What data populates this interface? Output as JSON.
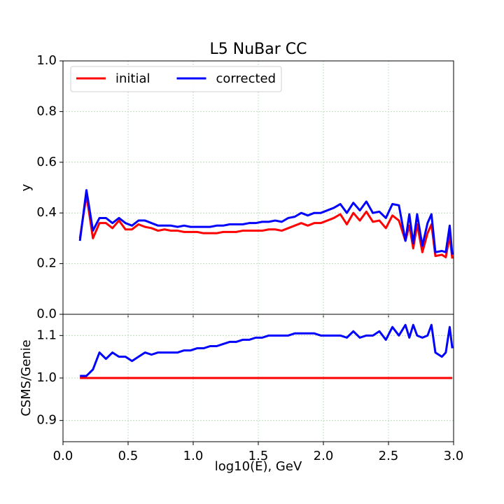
{
  "chart_data": [
    {
      "type": "line",
      "title": "L5 NuBar CC",
      "ylabel": "y",
      "x": [
        0.13,
        0.18,
        0.23,
        0.28,
        0.33,
        0.38,
        0.43,
        0.48,
        0.53,
        0.58,
        0.63,
        0.68,
        0.73,
        0.78,
        0.83,
        0.88,
        0.93,
        0.98,
        1.03,
        1.08,
        1.13,
        1.18,
        1.23,
        1.28,
        1.33,
        1.38,
        1.43,
        1.48,
        1.53,
        1.58,
        1.63,
        1.68,
        1.73,
        1.78,
        1.83,
        1.88,
        1.93,
        1.98,
        2.03,
        2.08,
        2.13,
        2.18,
        2.23,
        2.28,
        2.33,
        2.38,
        2.43,
        2.48,
        2.53,
        2.58,
        2.63,
        2.66,
        2.69,
        2.72,
        2.76,
        2.8,
        2.83,
        2.86,
        2.91,
        2.94,
        2.97,
        2.99
      ],
      "series": [
        {
          "name": "initial",
          "color": "#ff0000",
          "values": [
            0.3,
            0.47,
            0.3,
            0.36,
            0.36,
            0.34,
            0.37,
            0.335,
            0.335,
            0.355,
            0.345,
            0.34,
            0.33,
            0.335,
            0.33,
            0.33,
            0.325,
            0.325,
            0.325,
            0.32,
            0.32,
            0.32,
            0.325,
            0.325,
            0.325,
            0.33,
            0.33,
            0.33,
            0.33,
            0.335,
            0.335,
            0.33,
            0.34,
            0.35,
            0.36,
            0.35,
            0.36,
            0.36,
            0.37,
            0.38,
            0.395,
            0.355,
            0.4,
            0.37,
            0.405,
            0.365,
            0.37,
            0.34,
            0.39,
            0.37,
            0.29,
            0.35,
            0.26,
            0.355,
            0.245,
            0.32,
            0.355,
            0.23,
            0.235,
            0.225,
            0.31,
            0.22
          ]
        },
        {
          "name": "corrected",
          "color": "#0000ff",
          "values": [
            0.29,
            0.49,
            0.33,
            0.38,
            0.38,
            0.36,
            0.38,
            0.36,
            0.35,
            0.37,
            0.37,
            0.36,
            0.35,
            0.35,
            0.35,
            0.345,
            0.35,
            0.345,
            0.345,
            0.345,
            0.345,
            0.35,
            0.35,
            0.355,
            0.355,
            0.355,
            0.36,
            0.36,
            0.365,
            0.365,
            0.37,
            0.365,
            0.38,
            0.385,
            0.4,
            0.39,
            0.4,
            0.4,
            0.41,
            0.42,
            0.435,
            0.4,
            0.44,
            0.41,
            0.445,
            0.4,
            0.405,
            0.38,
            0.435,
            0.43,
            0.29,
            0.395,
            0.28,
            0.395,
            0.27,
            0.36,
            0.395,
            0.245,
            0.25,
            0.245,
            0.35,
            0.235
          ]
        }
      ],
      "xlim": [
        0,
        3
      ],
      "xticks": [
        0,
        0.5,
        1,
        1.5,
        2,
        2.5,
        3
      ],
      "ylim": [
        0,
        1
      ],
      "yticks": [
        {
          "value": 0,
          "label": "0.0"
        },
        0.2,
        0.4,
        0.6,
        0.8,
        {
          "value": 1,
          "label": "1.0"
        }
      ],
      "grid": true,
      "legend": "upper left"
    },
    {
      "type": "line",
      "ylabel": "CSMS/Genie",
      "xlabel": "log10(E), GeV",
      "x": [
        0.13,
        0.18,
        0.23,
        0.28,
        0.33,
        0.38,
        0.43,
        0.48,
        0.53,
        0.58,
        0.63,
        0.68,
        0.73,
        0.78,
        0.83,
        0.88,
        0.93,
        0.98,
        1.03,
        1.08,
        1.13,
        1.18,
        1.23,
        1.28,
        1.33,
        1.38,
        1.43,
        1.48,
        1.53,
        1.58,
        1.63,
        1.68,
        1.73,
        1.78,
        1.83,
        1.88,
        1.93,
        1.98,
        2.03,
        2.08,
        2.13,
        2.18,
        2.23,
        2.28,
        2.33,
        2.38,
        2.43,
        2.48,
        2.53,
        2.58,
        2.63,
        2.66,
        2.69,
        2.72,
        2.76,
        2.8,
        2.83,
        2.86,
        2.91,
        2.94,
        2.97,
        2.99
      ],
      "series": [
        {
          "color": "#ff0000",
          "values": [
            1,
            1,
            1,
            1,
            1,
            1,
            1,
            1,
            1,
            1,
            1,
            1,
            1,
            1,
            1,
            1,
            1,
            1,
            1,
            1,
            1,
            1,
            1,
            1,
            1,
            1,
            1,
            1,
            1,
            1,
            1,
            1,
            1,
            1,
            1,
            1,
            1,
            1,
            1,
            1,
            1,
            1,
            1,
            1,
            1,
            1,
            1,
            1,
            1,
            1,
            1,
            1,
            1,
            1,
            1,
            1,
            1,
            1,
            1,
            1,
            1,
            1
          ]
        },
        {
          "color": "#0000ff",
          "values": [
            1.005,
            1.005,
            1.02,
            1.06,
            1.045,
            1.06,
            1.05,
            1.05,
            1.04,
            1.05,
            1.06,
            1.055,
            1.06,
            1.06,
            1.06,
            1.06,
            1.065,
            1.065,
            1.07,
            1.07,
            1.075,
            1.075,
            1.08,
            1.085,
            1.085,
            1.09,
            1.09,
            1.095,
            1.095,
            1.1,
            1.1,
            1.1,
            1.1,
            1.105,
            1.105,
            1.105,
            1.105,
            1.1,
            1.1,
            1.1,
            1.1,
            1.095,
            1.11,
            1.095,
            1.1,
            1.1,
            1.11,
            1.09,
            1.12,
            1.1,
            1.125,
            1.095,
            1.125,
            1.1,
            1.095,
            1.1,
            1.125,
            1.06,
            1.05,
            1.06,
            1.12,
            1.07
          ]
        }
      ],
      "xlim": [
        0,
        3
      ],
      "xticks": [
        {
          "value": 0,
          "label": "0.0"
        },
        0.5,
        {
          "value": 1,
          "label": "1.0"
        },
        1.5,
        {
          "value": 2,
          "label": "2.0"
        },
        2.5,
        {
          "value": 3,
          "label": "3.0"
        }
      ],
      "ylim": [
        0.85,
        1.15
      ],
      "yticks": [
        0.9,
        {
          "value": 1,
          "label": "1.0"
        },
        1.1
      ],
      "grid": true
    }
  ]
}
